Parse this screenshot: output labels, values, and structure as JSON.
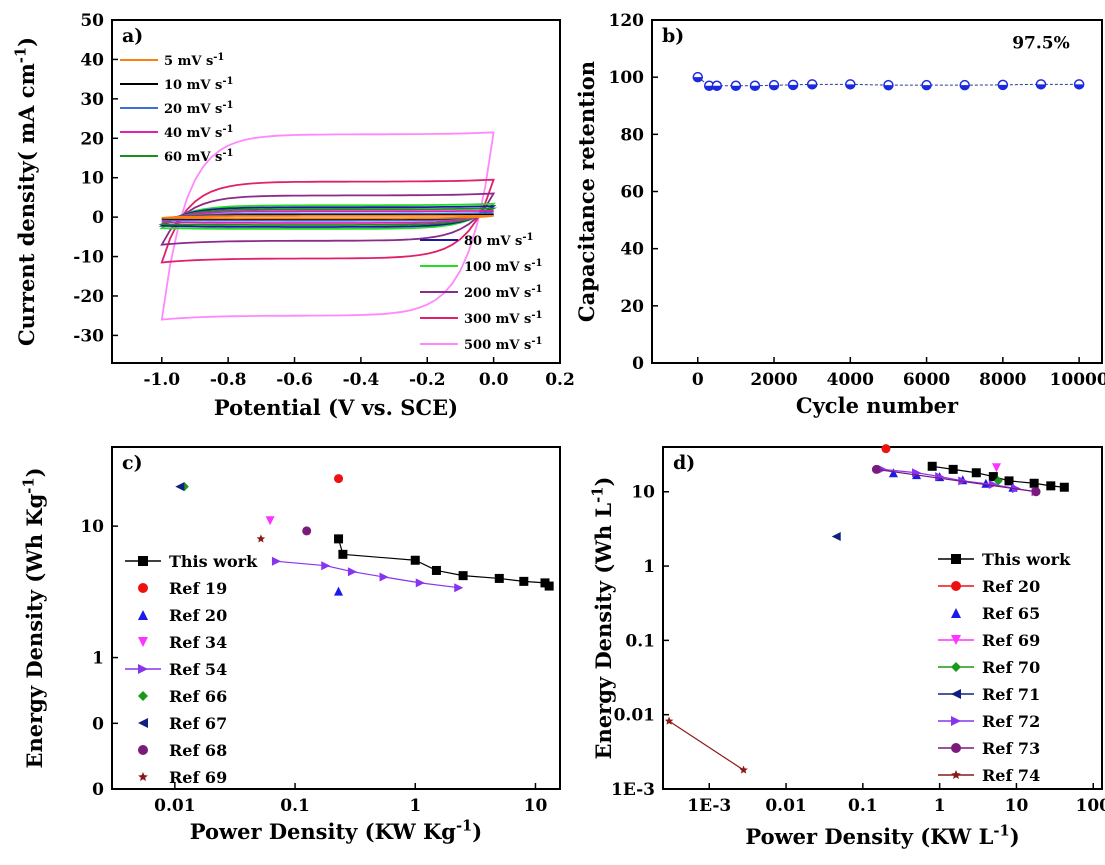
{
  "chart_data": [
    {
      "id": "a",
      "type": "line",
      "panel_label": "a)",
      "xlabel": "Potential (V vs. SCE)",
      "ylabel": "Current density( mA cm",
      "ylabel_sup": "-1",
      "ylabel_end": ")",
      "xlim": [
        -1.15,
        0.2
      ],
      "ylim": [
        -37,
        50
      ],
      "xticks": [
        -1.0,
        -0.8,
        -0.6,
        -0.4,
        -0.2,
        0.0,
        0.2
      ],
      "xtick_labels": [
        "-1.0",
        "-0.8",
        "-0.6",
        "-0.4",
        "-0.2",
        "0.0",
        "0.2"
      ],
      "yticks": [
        -30,
        -20,
        -10,
        0,
        10,
        20,
        30,
        40,
        50
      ],
      "ytick_labels": [
        "-30",
        "-20",
        "-10",
        "0",
        "10",
        "20",
        "30",
        "40",
        "50"
      ],
      "series": [
        {
          "name": "5 mV s",
          "color": "#ff7f0e",
          "v0": -0.2,
          "v1": 0.3,
          "top": 0.3,
          "bot": -0.3
        },
        {
          "name": "10 mV s",
          "color": "#000000",
          "v0": -0.4,
          "v1": 0.6,
          "top": 0.5,
          "bot": -0.5
        },
        {
          "name": "20 mV s",
          "color": "#3b6fe0",
          "v0": -0.7,
          "v1": 1.0,
          "top": 0.9,
          "bot": -0.9
        },
        {
          "name": "40 mV s",
          "color": "#e020b0",
          "v0": -1.2,
          "v1": 1.6,
          "top": 1.5,
          "bot": -1.5
        },
        {
          "name": "60 mV s",
          "color": "#1a8f1a",
          "v0": -1.8,
          "v1": 2.2,
          "top": 2.0,
          "bot": -2.0
        },
        {
          "name": "80 mV s",
          "color": "#1a1aa0",
          "v0": -2.2,
          "v1": 2.8,
          "top": 2.5,
          "bot": -2.5
        },
        {
          "name": "100 mV s",
          "color": "#22dd22",
          "v0": -2.8,
          "v1": 3.4,
          "top": 3.0,
          "bot": -3.0
        },
        {
          "name": "200 mV s",
          "color": "#8a2a8a",
          "v0": -7.0,
          "v1": 6.0,
          "top": 5.5,
          "bot": -6.0
        },
        {
          "name": "300 mV s",
          "color": "#e0206a",
          "v0": -11.5,
          "v1": 9.5,
          "top": 9.0,
          "bot": -10.5
        },
        {
          "name": "500 mV s",
          "color": "#ff88ff",
          "v0": -26.0,
          "v1": 21.5,
          "top": 21.0,
          "bot": -25.0
        }
      ],
      "legend_sup": "-1"
    },
    {
      "id": "b",
      "type": "line",
      "panel_label": "b)",
      "xlabel": "Cycle number",
      "ylabel": "Capacitance retention",
      "annotation": "97.5%",
      "xlim": [
        -1200,
        10600
      ],
      "ylim": [
        0,
        120
      ],
      "xticks": [
        0,
        2000,
        4000,
        6000,
        8000,
        10000
      ],
      "yticks": [
        0,
        20,
        40,
        60,
        80,
        100,
        120
      ],
      "x": [
        0,
        300,
        500,
        1000,
        1500,
        2000,
        2500,
        3000,
        4000,
        5000,
        6000,
        7000,
        8000,
        9000,
        10000
      ],
      "y": [
        100,
        97,
        97,
        97,
        97,
        97.2,
        97.3,
        97.5,
        97.5,
        97.2,
        97.2,
        97.2,
        97.3,
        97.5,
        97.5
      ]
    },
    {
      "id": "c",
      "type": "scatter",
      "panel_label": "c)",
      "xlabel": "Power Density (KW Kg",
      "xlabel_sup": "-1",
      "xlabel_end": ")",
      "ylabel": "Energy Density (Wh Kg",
      "ylabel_sup": "-1",
      "ylabel_end": ")",
      "xscale": "log",
      "yscale": "log",
      "xlim": [
        0.003,
        16
      ],
      "ylim": [
        0.1,
        40
      ],
      "xticks": [
        0.01,
        0.1,
        1,
        10
      ],
      "xtick_labels": [
        "0.01",
        "0.1",
        "1",
        "10"
      ],
      "yticks": [
        0.1,
        0.316,
        1,
        10
      ],
      "ytick_labels": [
        "0",
        "0",
        "1",
        "10"
      ],
      "series": [
        {
          "name": "This work",
          "marker": "square",
          "color": "#000000",
          "line": true,
          "x": [
            0.23,
            0.25,
            1.0,
            1.5,
            2.5,
            5,
            8,
            12,
            13
          ],
          "y": [
            8.0,
            6.1,
            5.5,
            4.6,
            4.2,
            4.0,
            3.8,
            3.7,
            3.5
          ]
        },
        {
          "name": "Ref 19",
          "marker": "circle",
          "color": "#ee1111",
          "line": false,
          "x": [
            0.23
          ],
          "y": [
            23
          ]
        },
        {
          "name": "Ref 20",
          "marker": "triangle-up",
          "color": "#1a1aee",
          "line": false,
          "x": [
            0.23
          ],
          "y": [
            3.2
          ]
        },
        {
          "name": "Ref 34",
          "marker": "triangle-down",
          "color": "#ff33ff",
          "line": false,
          "x": [
            0.062
          ],
          "y": [
            11
          ]
        },
        {
          "name": "Ref 54",
          "marker": "triangle-right",
          "color": "#8833ee",
          "line": true,
          "x": [
            0.07,
            0.18,
            0.3,
            0.55,
            1.1,
            2.3
          ],
          "y": [
            5.4,
            5.0,
            4.5,
            4.1,
            3.7,
            3.4
          ]
        },
        {
          "name": "Ref 66",
          "marker": "diamond",
          "color": "#1a9a1a",
          "line": false,
          "x": [
            0.012
          ],
          "y": [
            20
          ]
        },
        {
          "name": "Ref 67",
          "marker": "triangle-left",
          "color": "#102080",
          "line": false,
          "x": [
            0.011
          ],
          "y": [
            20
          ]
        },
        {
          "name": "Ref 68",
          "marker": "circle",
          "color": "#7a1a7a",
          "line": false,
          "x": [
            0.125
          ],
          "y": [
            9.2
          ]
        },
        {
          "name": "Ref 69",
          "marker": "star",
          "color": "#8a1a1a",
          "line": false,
          "x": [
            0.052
          ],
          "y": [
            8.0
          ]
        }
      ]
    },
    {
      "id": "d",
      "type": "scatter",
      "panel_label": "d)",
      "xlabel": "Power Density (KW L",
      "xlabel_sup": "-1",
      "xlabel_end": ")",
      "ylabel": "Energy Density (Wh L",
      "ylabel_sup": "-1",
      "ylabel_end": ")",
      "xscale": "log",
      "yscale": "log",
      "xlim": [
        0.00025,
        130
      ],
      "ylim": [
        0.001,
        40
      ],
      "xticks": [
        0.001,
        0.01,
        0.1,
        1,
        10,
        100
      ],
      "xtick_labels": [
        "1E-3",
        "0.01",
        "0.1",
        "1",
        "10",
        "100"
      ],
      "yticks": [
        0.001,
        0.01,
        0.1,
        1,
        10
      ],
      "ytick_labels": [
        "1E-3",
        "0.01",
        "0.1",
        "1",
        "10"
      ],
      "series": [
        {
          "name": "This work",
          "marker": "square",
          "color": "#000000",
          "line": true,
          "x": [
            0.8,
            1.5,
            3,
            5,
            8,
            17,
            28,
            42
          ],
          "y": [
            22,
            20,
            18,
            16,
            14,
            13,
            12,
            11.5
          ]
        },
        {
          "name": "Ref 20",
          "marker": "circle",
          "color": "#ee1111",
          "line": true,
          "x": [
            0.2
          ],
          "y": [
            38
          ]
        },
        {
          "name": "Ref 65",
          "marker": "triangle-up",
          "color": "#1a1aee",
          "line": false,
          "x": [
            0.25,
            0.5,
            1,
            2,
            4,
            9
          ],
          "y": [
            18,
            17,
            16,
            14.5,
            13,
            11.5
          ]
        },
        {
          "name": "Ref 69",
          "marker": "triangle-down",
          "color": "#ff33ff",
          "line": true,
          "x": [
            5.5
          ],
          "y": [
            21
          ]
        },
        {
          "name": "Ref 70",
          "marker": "diamond",
          "color": "#1a9a1a",
          "line": true,
          "x": [
            5.8
          ],
          "y": [
            14
          ]
        },
        {
          "name": "Ref 71",
          "marker": "triangle-left",
          "color": "#102080",
          "line": true,
          "x": [
            0.045
          ],
          "y": [
            2.5
          ]
        },
        {
          "name": "Ref 72",
          "marker": "triangle-right",
          "color": "#8833ee",
          "line": true,
          "x": [
            0.18,
            0.5,
            1,
            2,
            5,
            10,
            18
          ],
          "y": [
            20,
            18,
            16,
            14,
            12.5,
            11,
            10
          ]
        },
        {
          "name": "Ref 73",
          "marker": "circle",
          "color": "#7a1a7a",
          "line": true,
          "x": [
            0.15,
            18
          ],
          "y": [
            20,
            10
          ]
        },
        {
          "name": "Ref 74",
          "marker": "star",
          "color": "#8a1a1a",
          "line": true,
          "x": [
            0.0003,
            0.0028
          ],
          "y": [
            0.0082,
            0.0018
          ]
        }
      ]
    }
  ]
}
